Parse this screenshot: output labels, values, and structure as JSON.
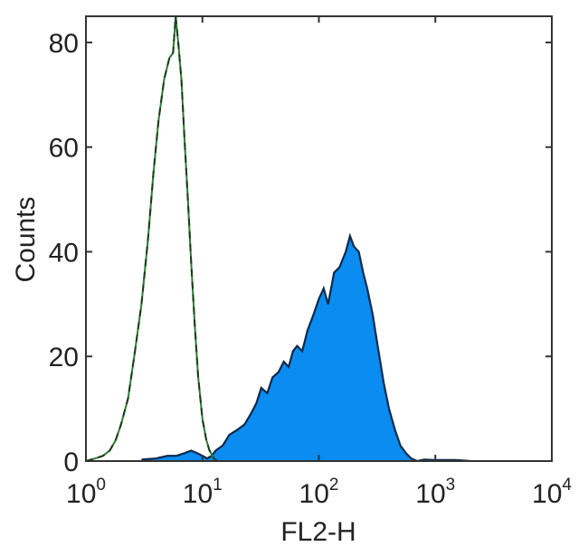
{
  "chart_data": {
    "type": "area",
    "title": "",
    "xlabel": "FL2-H",
    "ylabel": "Counts",
    "xscale": "log",
    "xlim": [
      1,
      10000
    ],
    "ylim": [
      0,
      85
    ],
    "grid": false,
    "x_ticks": [
      {
        "base": "10",
        "exp": "0"
      },
      {
        "base": "10",
        "exp": "1"
      },
      {
        "base": "10",
        "exp": "2"
      },
      {
        "base": "10",
        "exp": "3"
      },
      {
        "base": "10",
        "exp": "4"
      }
    ],
    "y_ticks": [
      "0",
      "20",
      "40",
      "60",
      "80"
    ],
    "colors": {
      "fill": "#0a8cf0",
      "filled_outline": "#0b2a4a",
      "control_outline": "#2e7d32",
      "frame": "#333333"
    },
    "series": [
      {
        "style": "outline-dashed",
        "x": [
          1,
          1.2,
          1.4,
          1.6,
          1.8,
          2,
          2.3,
          2.6,
          3,
          3.4,
          3.8,
          4.2,
          4.7,
          5.2,
          5.6,
          5.9,
          6.2,
          6.6,
          7,
          7.5,
          8,
          8.6,
          9.2,
          10,
          10.8,
          11.5,
          12.5,
          13.5
        ],
        "y": [
          0,
          0.5,
          1,
          2,
          4,
          7,
          12,
          20,
          30,
          42,
          55,
          65,
          73,
          77,
          78,
          85,
          80,
          73,
          62,
          50,
          38,
          26,
          16,
          8,
          4,
          2,
          0.5,
          0
        ]
      },
      {
        "style": "filled",
        "x": [
          3,
          4,
          5,
          6,
          7,
          8,
          9,
          10,
          11,
          12,
          13,
          15,
          17,
          20,
          23,
          26,
          29,
          32,
          36,
          40,
          45,
          50,
          55,
          60,
          65,
          72,
          80,
          90,
          100,
          110,
          120,
          135,
          150,
          170,
          185,
          200,
          220,
          240,
          260,
          290,
          320,
          360,
          400,
          450,
          500,
          560,
          620,
          700,
          800,
          1000,
          1500,
          2000
        ],
        "y": [
          0.3,
          0.5,
          1,
          1,
          1.5,
          2,
          1.5,
          1,
          0.5,
          1,
          2,
          3,
          5,
          6,
          7,
          9,
          11,
          14,
          13,
          16,
          17,
          19,
          18,
          21,
          22,
          21,
          25,
          28,
          31,
          33,
          30,
          36,
          37,
          40,
          43,
          41,
          40,
          36,
          33,
          28,
          22,
          15,
          10,
          6,
          3,
          1.5,
          0.5,
          0,
          0.3,
          0.2,
          0.2,
          0
        ]
      }
    ]
  }
}
